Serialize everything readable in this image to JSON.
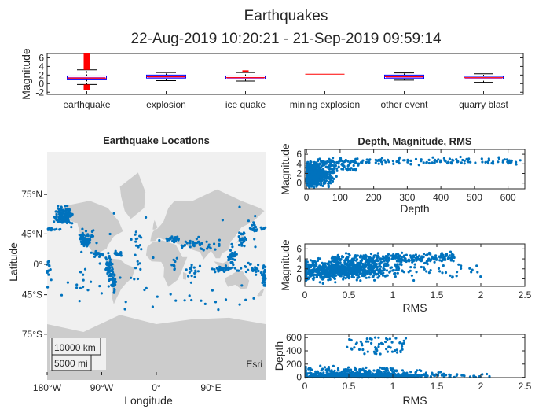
{
  "figure": {
    "title": "Earthquakes",
    "subtitle": "22-Aug-2019 10:20:21 - 21-Sep-2019 09:59:14"
  },
  "colors": {
    "points": "#0072BD",
    "box_fill": "#ff0000",
    "box_outline": "#0000ff",
    "median": "#ff0000",
    "whisker": "#000000",
    "land": "#cccccc",
    "ocean": "#f0f0f0"
  },
  "chart_data": [
    {
      "id": "boxplot",
      "type": "box",
      "title": "",
      "xlabel": "",
      "ylabel": "Magnitude",
      "ylim": [
        -2.5,
        7
      ],
      "yticks": [
        -2,
        0,
        2,
        4,
        6
      ],
      "ytick_labels": [
        "-2",
        "0",
        "2",
        "4",
        "6"
      ],
      "categories": [
        "earthquake",
        "explosion",
        "ice quake",
        "mining explosion",
        "other event",
        "quarry blast"
      ],
      "boxes": [
        {
          "q1": 0.9,
          "median": 1.3,
          "q3": 1.8,
          "whisker_low": -0.2,
          "whisker_high": 3.2,
          "outlier_low": -1.5,
          "outlier_high": 7.0
        },
        {
          "q1": 1.3,
          "median": 1.6,
          "q3": 2.0,
          "whisker_low": 0.7,
          "whisker_high": 2.6,
          "outlier_low": null,
          "outlier_high": null
        },
        {
          "q1": 1.1,
          "median": 1.4,
          "q3": 1.8,
          "whisker_low": 0.6,
          "whisker_high": 2.6,
          "outlier_low": null,
          "outlier_high": 3.1
        },
        {
          "q1": 2.2,
          "median": 2.2,
          "q3": 2.2,
          "whisker_low": 2.2,
          "whisker_high": 2.2,
          "outlier_low": null,
          "outlier_high": null
        },
        {
          "q1": 1.2,
          "median": 1.6,
          "q3": 2.0,
          "whisker_low": 0.8,
          "whisker_high": 2.5,
          "outlier_low": null,
          "outlier_high": null
        },
        {
          "q1": 1.1,
          "median": 1.4,
          "q3": 1.7,
          "whisker_low": 0.3,
          "whisker_high": 2.3,
          "outlier_low": null,
          "outlier_high": null
        }
      ]
    },
    {
      "id": "map",
      "type": "scatter",
      "title": "Earthquake Locations",
      "xlabel": "Longitude",
      "ylabel": "Latitude",
      "xticks": [
        -180,
        -90,
        0,
        90
      ],
      "xtick_labels": [
        "180°W",
        "90°W",
        "0°",
        "90°E"
      ],
      "yticks": [
        75,
        45,
        0,
        -45,
        -75
      ],
      "ytick_labels": [
        "75°N",
        "45°N",
        "0°",
        "45°S",
        "75°S"
      ],
      "scalebar": [
        "10000 km",
        "5000 mi"
      ],
      "attribution": "Esri"
    },
    {
      "id": "depth_mag",
      "type": "scatter",
      "title": "Depth, Magnitude, RMS",
      "xlabel": "Depth",
      "ylabel": "Magnitude",
      "xlim": [
        -5,
        650
      ],
      "ylim": [
        -1.2,
        7
      ],
      "xticks": [
        0,
        100,
        200,
        300,
        400,
        500,
        600
      ],
      "xtick_labels": [
        "0",
        "100",
        "200",
        "300",
        "400",
        "500",
        "600"
      ],
      "yticks": [
        0,
        2,
        4,
        6
      ],
      "ytick_labels": [
        "0",
        "2",
        "4",
        "6"
      ]
    },
    {
      "id": "rms_mag",
      "type": "scatter",
      "title": "",
      "xlabel": "RMS",
      "ylabel": "Magnitude",
      "xlim": [
        0,
        2.5
      ],
      "ylim": [
        -1.5,
        7
      ],
      "xticks": [
        0,
        0.5,
        1,
        1.5,
        2,
        2.5
      ],
      "xtick_labels": [
        "0",
        "0.5",
        "1",
        "1.5",
        "2",
        "2.5"
      ],
      "yticks": [
        0,
        2,
        4,
        6
      ],
      "ytick_labels": [
        "0",
        "2",
        "4",
        "6"
      ]
    },
    {
      "id": "rms_depth",
      "type": "scatter",
      "title": "",
      "xlabel": "RMS",
      "ylabel": "Depth",
      "xlim": [
        0,
        2.5
      ],
      "ylim": [
        -5,
        650
      ],
      "xticks": [
        0,
        0.5,
        1,
        1.5,
        2,
        2.5
      ],
      "xtick_labels": [
        "0",
        "0.5",
        "1",
        "1.5",
        "2",
        "2.5"
      ],
      "yticks": [
        0,
        200,
        400,
        600
      ],
      "ytick_labels": [
        "0",
        "200",
        "400",
        "600"
      ]
    }
  ]
}
